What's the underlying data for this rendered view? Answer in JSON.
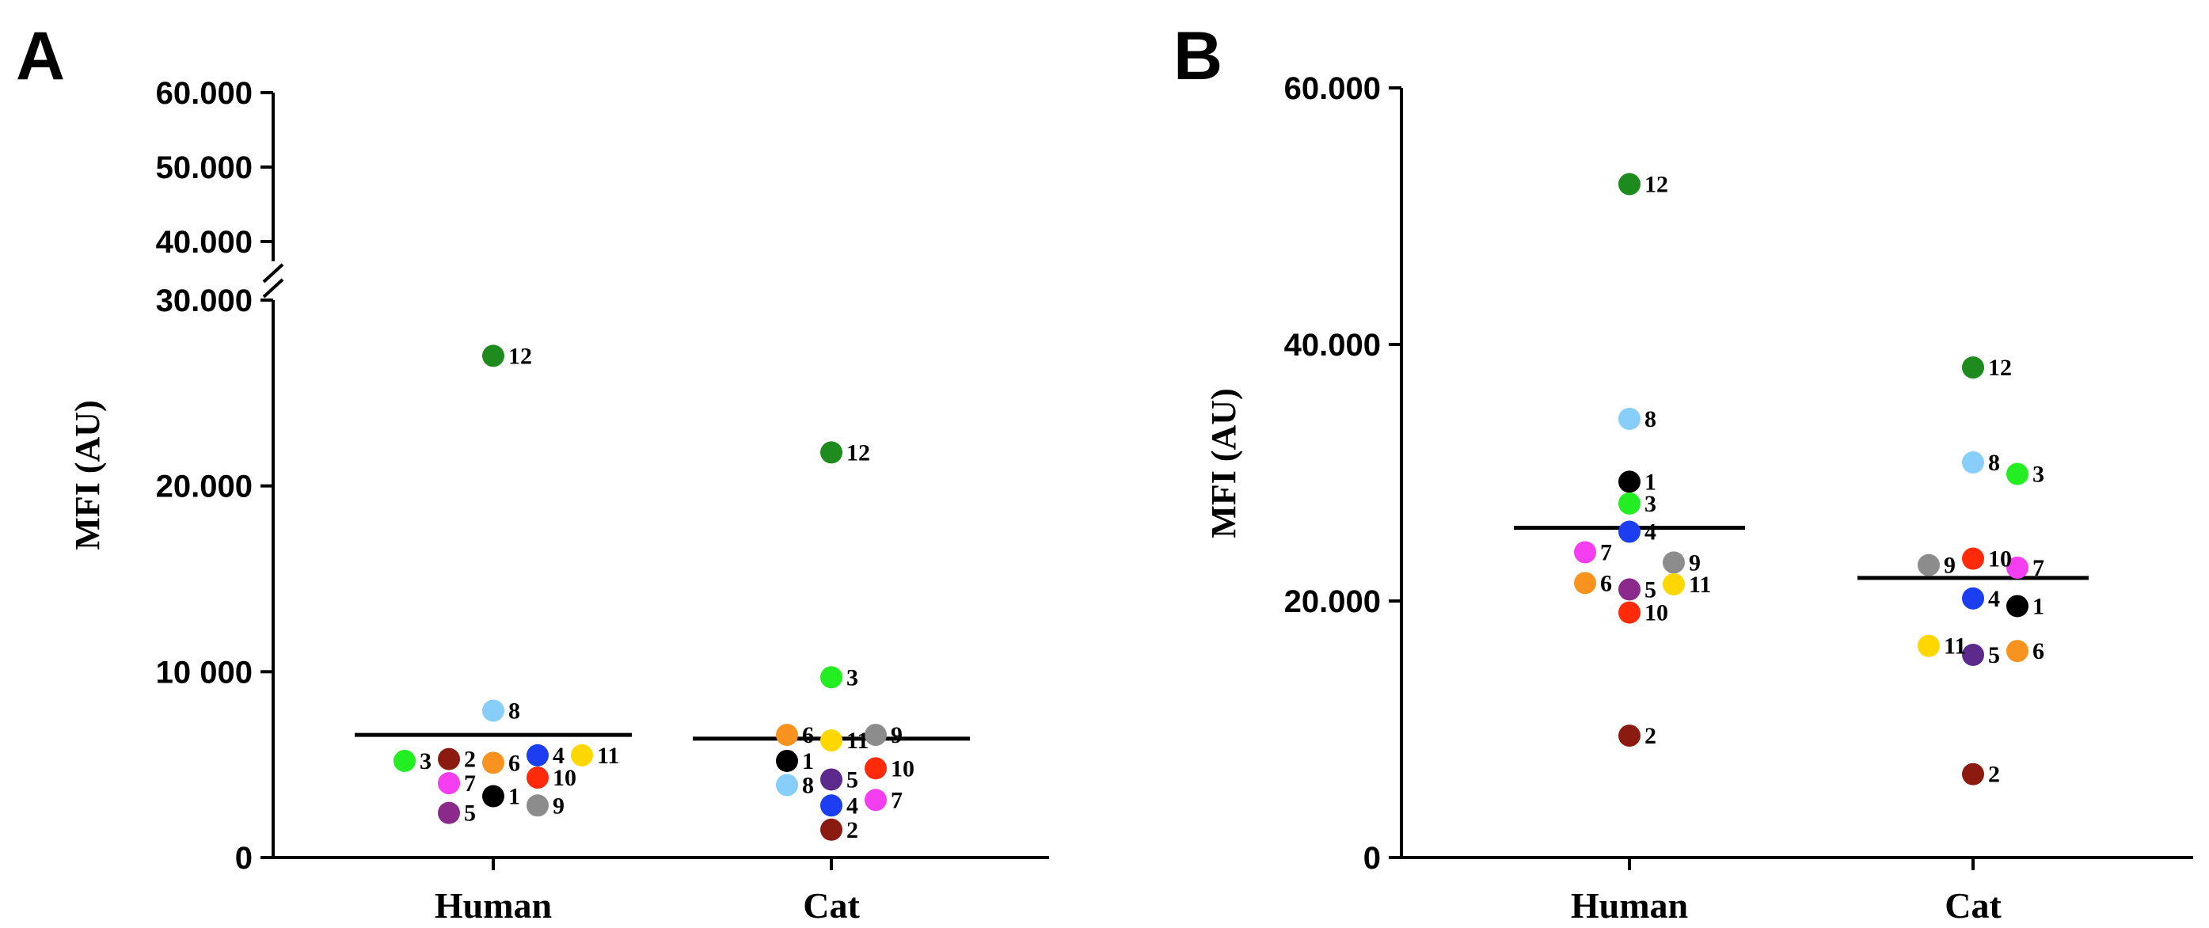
{
  "chart_data": [
    {
      "type": "scatter",
      "panel": "A",
      "ylabel": "MFI (AU)",
      "categories": [
        "Human",
        "Cat"
      ],
      "axis_break": {
        "lower_ylim": [
          0,
          30000
        ],
        "upper_ylim": [
          40000,
          60000
        ]
      },
      "yticks": [
        {
          "value": 0,
          "label": "0"
        },
        {
          "value": 10000,
          "label": "10 000"
        },
        {
          "value": 20000,
          "label": "20.000"
        },
        {
          "value": 30000,
          "label": "30.000"
        },
        {
          "value": 40000,
          "label": "40.000"
        },
        {
          "value": 50000,
          "label": "50.000"
        },
        {
          "value": 60000,
          "label": "60.000"
        }
      ],
      "medians": [
        6600,
        6400
      ],
      "series": [
        {
          "category": "Human",
          "points": [
            {
              "id": "1",
              "value": 3300,
              "color": "#000000",
              "offset": 0
            },
            {
              "id": "2",
              "value": 5300,
              "color": "#8b1a10",
              "offset": -1
            },
            {
              "id": "3",
              "value": 5200,
              "color": "#22ee22",
              "offset": -2
            },
            {
              "id": "4",
              "value": 5500,
              "color": "#1a3ef0",
              "offset": 1
            },
            {
              "id": "5",
              "value": 2400,
              "color": "#8a2a8a",
              "offset": -1
            },
            {
              "id": "6",
              "value": 5100,
              "color": "#f7931e",
              "offset": 0
            },
            {
              "id": "7",
              "value": 4000,
              "color": "#f53ef0",
              "offset": -1
            },
            {
              "id": "8",
              "value": 7900,
              "color": "#87cefa",
              "offset": 0
            },
            {
              "id": "9",
              "value": 2800,
              "color": "#8c8c8c",
              "offset": 1
            },
            {
              "id": "10",
              "value": 4300,
              "color": "#ff2a0a",
              "offset": 1
            },
            {
              "id": "11",
              "value": 5500,
              "color": "#ffd700",
              "offset": 2
            },
            {
              "id": "12",
              "value": 27000,
              "color": "#1e8b1e",
              "offset": 0
            }
          ]
        },
        {
          "category": "Cat",
          "points": [
            {
              "id": "1",
              "value": 5200,
              "color": "#000000",
              "offset": -1
            },
            {
              "id": "2",
              "value": 1500,
              "color": "#8b1a10",
              "offset": 0
            },
            {
              "id": "3",
              "value": 9700,
              "color": "#22ee22",
              "offset": 0
            },
            {
              "id": "4",
              "value": 2800,
              "color": "#1a3ef0",
              "offset": 0
            },
            {
              "id": "5",
              "value": 4200,
              "color": "#5b2a8a",
              "offset": 0
            },
            {
              "id": "6",
              "value": 6600,
              "color": "#f7931e",
              "offset": -1
            },
            {
              "id": "7",
              "value": 3100,
              "color": "#f53ef0",
              "offset": 1
            },
            {
              "id": "8",
              "value": 3900,
              "color": "#87cefa",
              "offset": -1
            },
            {
              "id": "9",
              "value": 6600,
              "color": "#8c8c8c",
              "offset": 1
            },
            {
              "id": "10",
              "value": 4800,
              "color": "#ff2a0a",
              "offset": 1
            },
            {
              "id": "11",
              "value": 6300,
              "color": "#ffd700",
              "offset": 0
            },
            {
              "id": "12",
              "value": 21800,
              "color": "#1e8b1e",
              "offset": 0
            }
          ]
        }
      ]
    },
    {
      "type": "scatter",
      "panel": "B",
      "ylabel": "MFI (AU)",
      "categories": [
        "Human",
        "Cat"
      ],
      "ylim": [
        0,
        60000
      ],
      "yticks": [
        {
          "value": 0,
          "label": "0"
        },
        {
          "value": 20000,
          "label": "20.000"
        },
        {
          "value": 40000,
          "label": "40.000"
        },
        {
          "value": 60000,
          "label": "60.000"
        }
      ],
      "medians": [
        25700,
        21800
      ],
      "series": [
        {
          "category": "Human",
          "points": [
            {
              "id": "1",
              "value": 29300,
              "color": "#000000",
              "offset": 0
            },
            {
              "id": "2",
              "value": 9500,
              "color": "#8b1a10",
              "offset": 0
            },
            {
              "id": "3",
              "value": 27600,
              "color": "#22ee22",
              "offset": 0
            },
            {
              "id": "4",
              "value": 25400,
              "color": "#1a3ef0",
              "offset": 0
            },
            {
              "id": "5",
              "value": 20900,
              "color": "#8a2a8a",
              "offset": 0
            },
            {
              "id": "6",
              "value": 21400,
              "color": "#f7931e",
              "offset": -1
            },
            {
              "id": "7",
              "value": 23800,
              "color": "#f53ef0",
              "offset": -1
            },
            {
              "id": "8",
              "value": 34200,
              "color": "#87cefa",
              "offset": 0
            },
            {
              "id": "9",
              "value": 23000,
              "color": "#8c8c8c",
              "offset": 1
            },
            {
              "id": "10",
              "value": 19100,
              "color": "#ff2a0a",
              "offset": 0
            },
            {
              "id": "11",
              "value": 21300,
              "color": "#ffd700",
              "offset": 1
            },
            {
              "id": "12",
              "value": 52500,
              "color": "#1e8b1e",
              "offset": 0
            }
          ]
        },
        {
          "category": "Cat",
          "points": [
            {
              "id": "1",
              "value": 19600,
              "color": "#000000",
              "offset": 1
            },
            {
              "id": "2",
              "value": 6500,
              "color": "#8b1a10",
              "offset": 0
            },
            {
              "id": "3",
              "value": 29900,
              "color": "#22ee22",
              "offset": 1
            },
            {
              "id": "4",
              "value": 20200,
              "color": "#1a3ef0",
              "offset": 0
            },
            {
              "id": "5",
              "value": 15800,
              "color": "#5b2a8a",
              "offset": 0
            },
            {
              "id": "6",
              "value": 16100,
              "color": "#f7931e",
              "offset": 1
            },
            {
              "id": "7",
              "value": 22600,
              "color": "#f53ef0",
              "offset": 1
            },
            {
              "id": "8",
              "value": 30800,
              "color": "#87cefa",
              "offset": 0
            },
            {
              "id": "9",
              "value": 22800,
              "color": "#8c8c8c",
              "offset": -1
            },
            {
              "id": "10",
              "value": 23300,
              "color": "#ff2a0a",
              "offset": 0
            },
            {
              "id": "11",
              "value": 16500,
              "color": "#ffd700",
              "offset": -1
            },
            {
              "id": "12",
              "value": 38200,
              "color": "#1e8b1e",
              "offset": 0
            }
          ]
        }
      ]
    }
  ]
}
